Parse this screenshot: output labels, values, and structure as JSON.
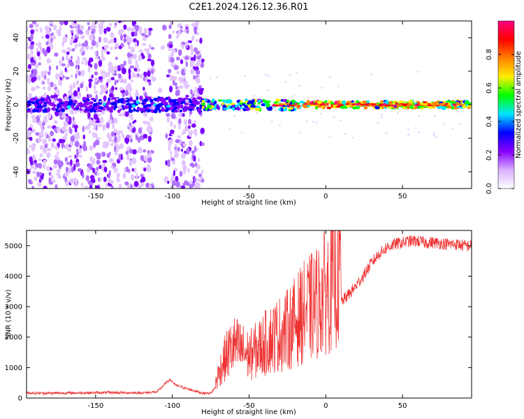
{
  "title": "C2E1.2024.126.12.36.R01",
  "chart_data": [
    {
      "type": "heatmap",
      "xlabel": "Height of straight line (km)",
      "ylabel": "Frequency (Hz)",
      "xlim": [
        -195,
        95
      ],
      "ylim": [
        -50,
        50
      ],
      "xticks": [
        -150,
        -100,
        -50,
        0,
        50
      ],
      "yticks": [
        -40,
        -20,
        0,
        20,
        40
      ],
      "colorbar": {
        "label": "Normalized spectral amplitude",
        "range": [
          0.0,
          1.0
        ],
        "ticks": [
          0.0,
          0.2,
          0.4,
          0.6,
          0.8
        ],
        "colormap": [
          "#ffffff",
          "#d9b0ff",
          "#8800ff",
          "#0000ff",
          "#00e5ff",
          "#00ff00",
          "#ffee00",
          "#ff8000",
          "#ff0000",
          "#ff0080"
        ]
      },
      "grid": false
    },
    {
      "type": "line",
      "xlabel": "Height of straight line (km)",
      "ylabel": "SNR (10 * v/v)",
      "xlim": [
        -195,
        95
      ],
      "ylim": [
        0,
        5500
      ],
      "xticks": [
        -150,
        -100,
        -50,
        0,
        50
      ],
      "yticks": [
        0,
        1000,
        2000,
        3000,
        4000,
        5000
      ],
      "series": [
        {
          "color": "#ee3333",
          "x": [
            -195,
            -180,
            -160,
            -140,
            -120,
            -110,
            -105,
            -102,
            -100,
            -98,
            -95,
            -90,
            -85,
            -80,
            -75,
            -72,
            -68,
            -64,
            -60,
            -55,
            -50,
            -45,
            -40,
            -35,
            -30,
            -25,
            -20,
            -15,
            -10,
            -5,
            0,
            5,
            10,
            15,
            20,
            25,
            30,
            35,
            40,
            45,
            50,
            55,
            60,
            65,
            70,
            75,
            80,
            85,
            90,
            95
          ],
          "y": [
            170,
            160,
            170,
            180,
            170,
            200,
            450,
            600,
            550,
            420,
            380,
            300,
            230,
            160,
            160,
            350,
            800,
            1100,
            1300,
            1200,
            1050,
            1200,
            1350,
            1500,
            1600,
            1700,
            1900,
            2100,
            2250,
            2400,
            2650,
            2900,
            3150,
            3400,
            3700,
            4050,
            4450,
            4750,
            4950,
            5050,
            5100,
            5150,
            5150,
            5100,
            5100,
            5080,
            5050,
            5050,
            5000,
            5000
          ]
        }
      ],
      "grid": false
    }
  ]
}
